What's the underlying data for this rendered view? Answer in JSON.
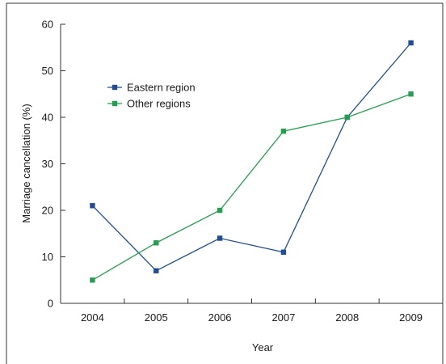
{
  "chart_data": {
    "type": "line",
    "title": "",
    "xlabel": "Year",
    "ylabel": "Marriage cancellation (%)",
    "x": [
      "2004",
      "2005",
      "2006",
      "2007",
      "2008",
      "2009"
    ],
    "ylim": [
      0,
      60
    ],
    "yticks": [
      0,
      10,
      20,
      30,
      40,
      50,
      60
    ],
    "grid": false,
    "legend_position": "top-left",
    "series": [
      {
        "name": "Eastern region",
        "color": "#1f4e97",
        "values": [
          21,
          7,
          14,
          11,
          40,
          56
        ]
      },
      {
        "name": "Other regions",
        "color": "#23a04e",
        "values": [
          5,
          13,
          20,
          37,
          40,
          45
        ]
      }
    ]
  }
}
